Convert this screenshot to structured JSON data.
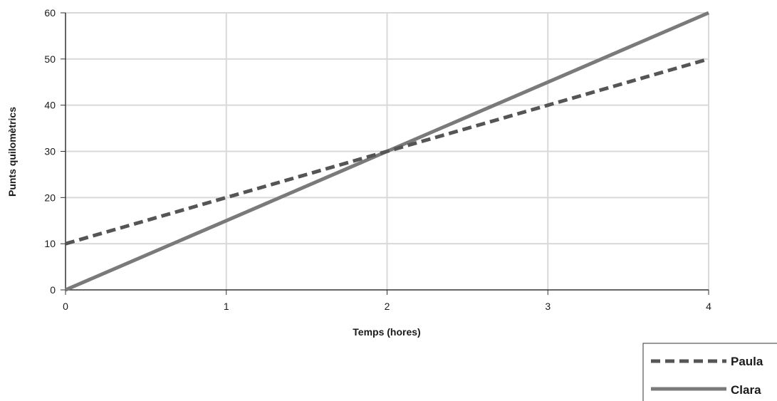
{
  "chart_data": {
    "type": "line",
    "xlabel": "Temps (hores)",
    "ylabel": "Punts quilomètrics",
    "xlim": [
      0,
      4
    ],
    "ylim": [
      0,
      60
    ],
    "x_ticks": [
      "0",
      "1",
      "2",
      "3",
      "4"
    ],
    "y_ticks": [
      "0",
      "10",
      "20",
      "30",
      "40",
      "50",
      "60"
    ],
    "grid": true,
    "legend_position": "bottom-right",
    "series": [
      {
        "name": "Paula",
        "style": "dashed",
        "color": "#555555",
        "x": [
          0,
          1,
          2,
          3,
          4
        ],
        "y": [
          10,
          20,
          30,
          40,
          50
        ]
      },
      {
        "name": "Clara",
        "style": "solid",
        "color": "#7a7a7a",
        "x": [
          0,
          1,
          2,
          3,
          4
        ],
        "y": [
          0,
          15,
          30,
          45,
          60
        ]
      }
    ]
  }
}
